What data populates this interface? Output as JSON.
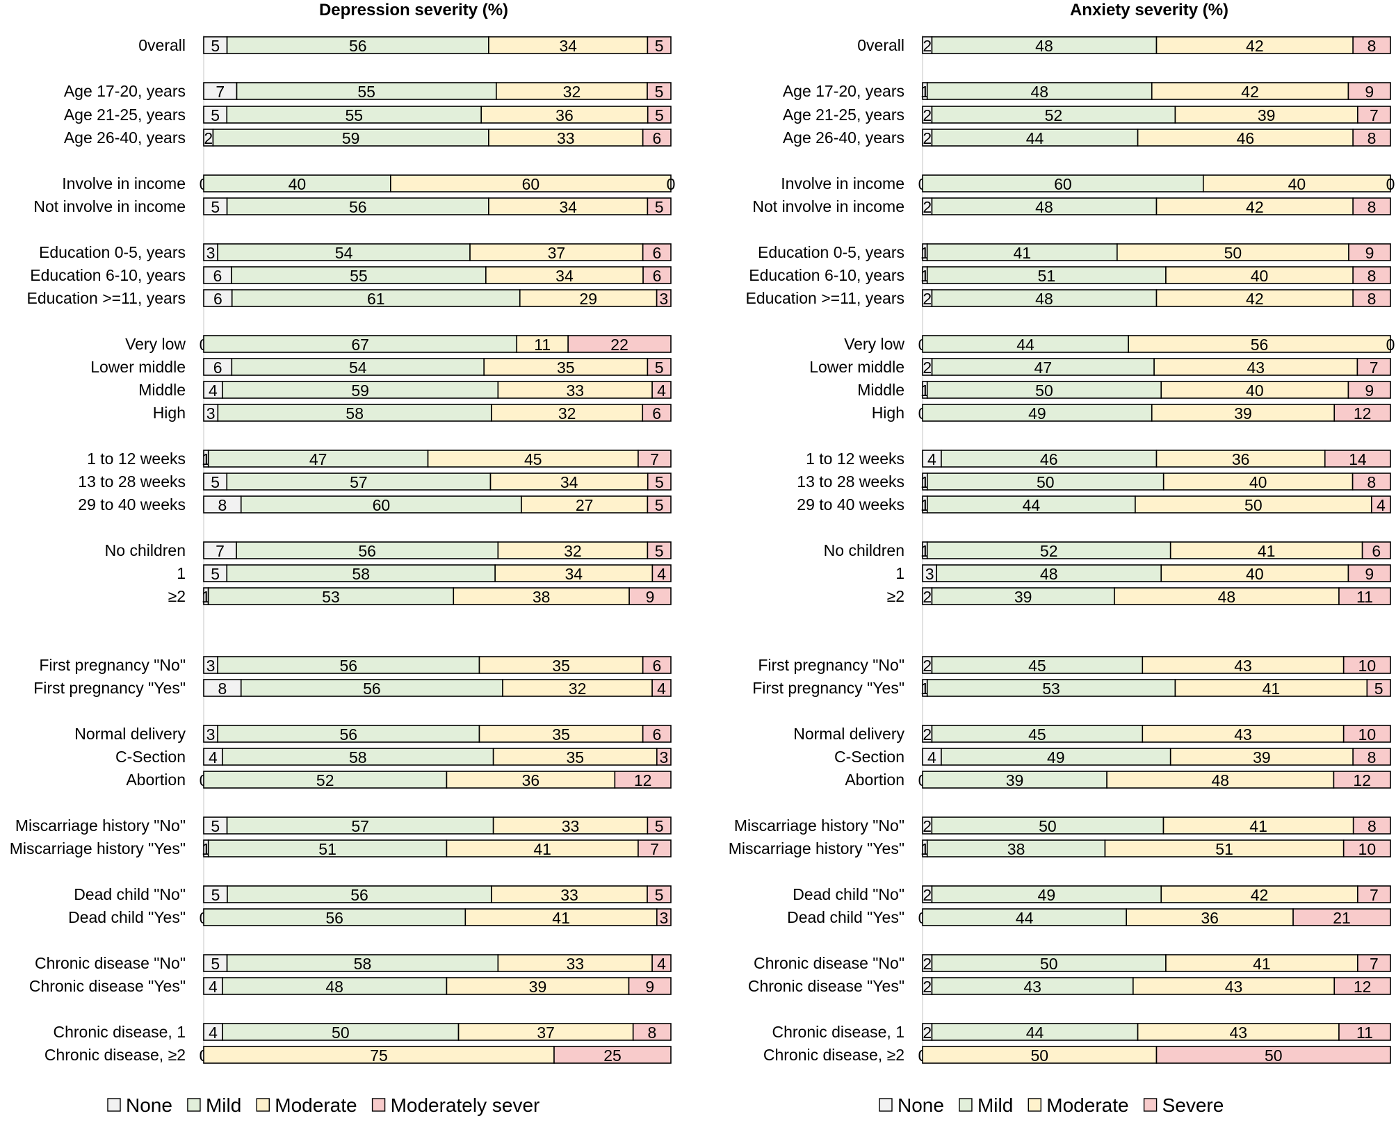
{
  "chart_data": [
    {
      "type": "bar",
      "orientation": "horizontal",
      "stacked": "100%",
      "title": "Depression severity (%)",
      "categories": [
        "0verall",
        "Age 17-20, years",
        "Age 21-25, years",
        "Age 26-40, years",
        "Involve in income",
        "Not involve in income",
        "Education 0-5, years",
        "Education 6-10, years",
        "Education >=11, years",
        "Very low",
        "Lower middle",
        "Middle",
        "High",
        "1 to 12 weeks",
        "13 to 28 weeks",
        "29 to 40 weeks",
        "No children",
        "1",
        "≥2",
        "First pregnancy \"No\"",
        "First pregnancy \"Yes\"",
        "Normal delivery",
        "C-Section",
        "Abortion",
        "Miscarriage history \"No\"",
        "Miscarriage history \"Yes\"",
        "Dead child \"No\"",
        "Dead child \"Yes\"",
        "Chronic disease \"No\"",
        "Chronic disease \"Yes\"",
        "Chronic disease, 1",
        "Chronic disease, ≥2"
      ],
      "series": [
        {
          "name": "None",
          "color": "#f2f2f2",
          "values": [
            5,
            7,
            5,
            2,
            0,
            5,
            3,
            6,
            6,
            0,
            6,
            4,
            3,
            1,
            5,
            8,
            7,
            5,
            1,
            3,
            8,
            3,
            4,
            0,
            5,
            1,
            5,
            0,
            5,
            4,
            4,
            0
          ]
        },
        {
          "name": "Mild",
          "color": "#e2efda",
          "values": [
            56,
            55,
            55,
            59,
            40,
            56,
            54,
            55,
            61,
            67,
            54,
            59,
            58,
            47,
            57,
            60,
            56,
            58,
            53,
            56,
            56,
            56,
            58,
            52,
            57,
            51,
            56,
            56,
            58,
            48,
            50,
            0
          ]
        },
        {
          "name": "Moderate",
          "color": "#fff2cc",
          "values": [
            34,
            32,
            36,
            33,
            60,
            34,
            37,
            34,
            29,
            11,
            35,
            33,
            32,
            45,
            34,
            27,
            32,
            34,
            38,
            35,
            32,
            35,
            35,
            36,
            33,
            41,
            33,
            41,
            33,
            39,
            37,
            75
          ]
        },
        {
          "name": "Moderately sever",
          "color": "#f8cbcb",
          "values": [
            5,
            5,
            5,
            6,
            0,
            5,
            6,
            6,
            3,
            22,
            5,
            4,
            6,
            7,
            5,
            5,
            5,
            4,
            9,
            6,
            4,
            6,
            3,
            12,
            5,
            7,
            5,
            3,
            4,
            9,
            8,
            25
          ]
        }
      ],
      "xlim": [
        0,
        100
      ],
      "legend": "bottom"
    },
    {
      "type": "bar",
      "orientation": "horizontal",
      "stacked": "100%",
      "title": "Anxiety severity (%)",
      "categories": [
        "0verall",
        "Age 17-20, years",
        "Age 21-25, years",
        "Age 26-40, years",
        "Involve in income",
        "Not involve in income",
        "Education 0-5, years",
        "Education 6-10, years",
        "Education >=11, years",
        "Very low",
        "Lower middle",
        "Middle",
        "High",
        "1 to 12 weeks",
        "13 to 28 weeks",
        "29 to 40 weeks",
        "No children",
        "1",
        "≥2",
        "First pregnancy \"No\"",
        "First pregnancy \"Yes\"",
        "Normal delivery",
        "C-Section",
        "Abortion",
        "Miscarriage history \"No\"",
        "Miscarriage history \"Yes\"",
        "Dead child \"No\"",
        "Dead child \"Yes\"",
        "Chronic disease \"No\"",
        "Chronic disease \"Yes\"",
        "Chronic disease, 1",
        "Chronic disease, ≥2"
      ],
      "series": [
        {
          "name": "None",
          "color": "#f2f2f2",
          "values": [
            2,
            1,
            2,
            2,
            0,
            2,
            1,
            1,
            2,
            0,
            2,
            1,
            0,
            4,
            1,
            1,
            1,
            3,
            2,
            2,
            1,
            2,
            4,
            0,
            2,
            1,
            2,
            0,
            2,
            2,
            2,
            0
          ]
        },
        {
          "name": "Mild",
          "color": "#e2efda",
          "values": [
            48,
            48,
            52,
            44,
            60,
            48,
            41,
            51,
            48,
            44,
            47,
            50,
            49,
            46,
            50,
            44,
            52,
            48,
            39,
            45,
            53,
            45,
            49,
            39,
            50,
            38,
            49,
            44,
            50,
            43,
            44,
            0
          ]
        },
        {
          "name": "Moderate",
          "color": "#fff2cc",
          "values": [
            42,
            42,
            39,
            46,
            40,
            42,
            50,
            40,
            42,
            56,
            43,
            40,
            39,
            36,
            40,
            50,
            41,
            40,
            48,
            43,
            41,
            43,
            39,
            48,
            41,
            51,
            42,
            36,
            41,
            43,
            43,
            50
          ]
        },
        {
          "name": "Severe",
          "color": "#f8cbcb",
          "values": [
            8,
            9,
            7,
            8,
            0,
            8,
            9,
            8,
            8,
            0,
            7,
            9,
            12,
            14,
            8,
            4,
            6,
            9,
            11,
            10,
            5,
            10,
            8,
            12,
            8,
            10,
            7,
            21,
            7,
            12,
            11,
            50
          ]
        }
      ],
      "xlim": [
        0,
        100
      ],
      "legend": "bottom"
    }
  ]
}
